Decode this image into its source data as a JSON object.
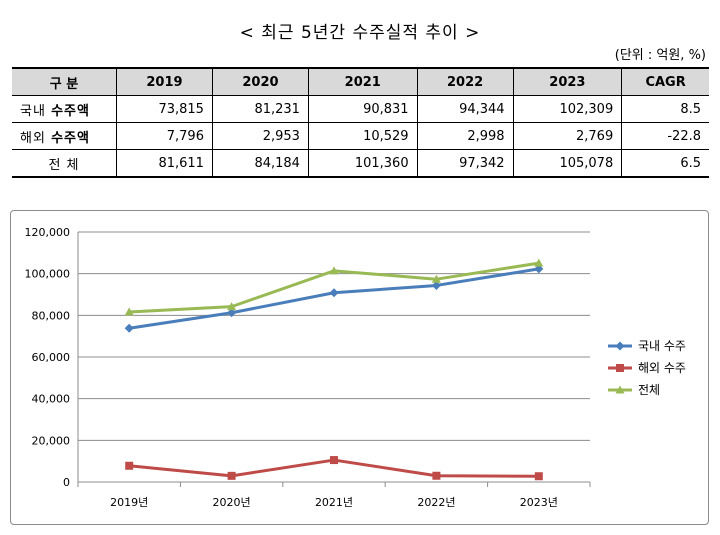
{
  "title": "< 최근 5년간 수주실적 추이 >",
  "unit": "(단위 : 억원, %)",
  "table": {
    "headers": [
      "구   분",
      "2019",
      "2020",
      "2021",
      "2022",
      "2023",
      "CAGR"
    ],
    "rows": [
      {
        "label_a": "국내",
        "label_b": "수주액",
        "values": [
          "73,815",
          "81,231",
          "90,831",
          "94,344",
          "102,309",
          "8.5"
        ]
      },
      {
        "label_a": "해외",
        "label_b": "수주액",
        "values": [
          "7,796",
          "2,953",
          "10,529",
          "2,998",
          "2,769",
          "-22.8"
        ]
      },
      {
        "label_a": "전   체",
        "label_b": "",
        "values": [
          "81,611",
          "84,184",
          "101,360",
          "97,342",
          "105,078",
          "6.5"
        ]
      }
    ]
  },
  "chart_data": {
    "type": "line",
    "categories": [
      "2019년",
      "2020년",
      "2021년",
      "2022년",
      "2023년"
    ],
    "ylim": [
      0,
      120000
    ],
    "yticks": [
      "0",
      "20,000",
      "40,000",
      "60,000",
      "80,000",
      "100,000",
      "120,000"
    ],
    "ytick_values": [
      0,
      20000,
      40000,
      60000,
      80000,
      100000,
      120000
    ],
    "grid": "horizontal",
    "legend_position": "right",
    "series": [
      {
        "name": "국내 수주",
        "color": "#4a7ebb",
        "marker": "diamond",
        "values": [
          73815,
          81231,
          90831,
          94344,
          102309
        ]
      },
      {
        "name": "해외 수주",
        "color": "#be4b48",
        "marker": "square",
        "values": [
          7796,
          2953,
          10529,
          2998,
          2769
        ]
      },
      {
        "name": "전체",
        "color": "#98b954",
        "marker": "triangle",
        "values": [
          81611,
          84184,
          101360,
          97342,
          105078
        ]
      }
    ]
  }
}
